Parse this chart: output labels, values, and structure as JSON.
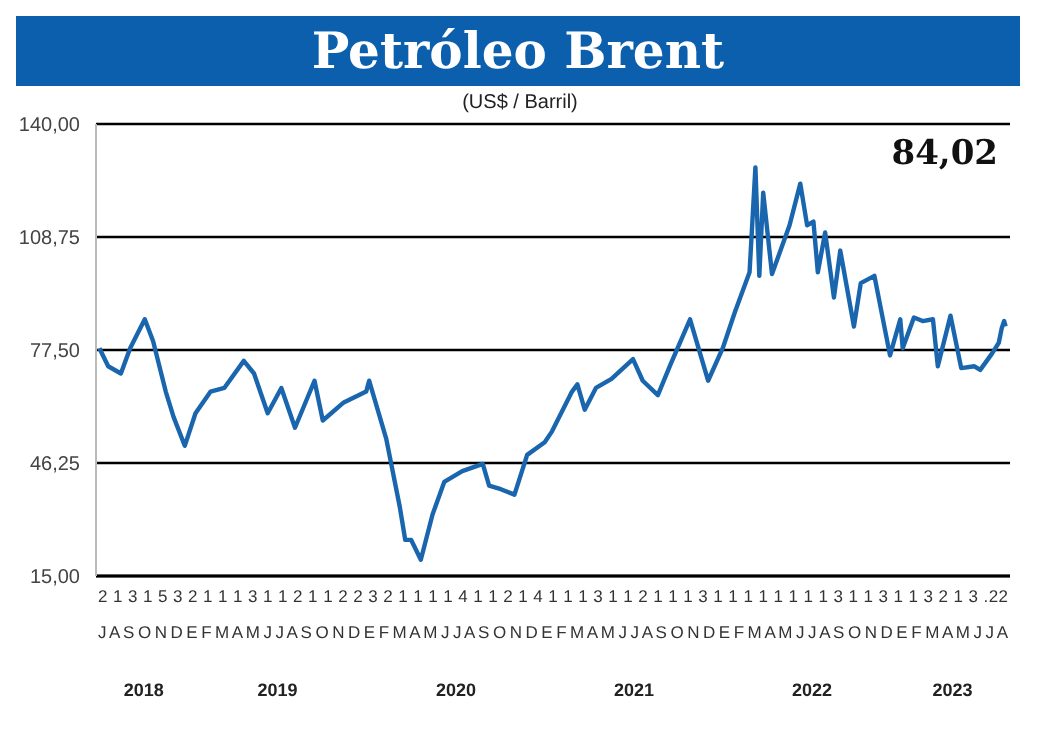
{
  "chart_data": {
    "type": "line",
    "title": "Petróleo Brent",
    "subtitle": "(US$ / Barril)",
    "x": [
      "2018-07-02",
      "2018-07-20",
      "2018-08-15",
      "2018-09-03",
      "2018-10-03",
      "2018-10-20",
      "2018-11-15",
      "2018-12-01",
      "2018-12-24",
      "2019-01-15",
      "2019-02-15",
      "2019-03-15",
      "2019-04-24",
      "2019-05-15",
      "2019-06-12",
      "2019-07-10",
      "2019-08-07",
      "2019-09-16",
      "2019-10-03",
      "2019-11-15",
      "2019-12-31",
      "2020-01-06",
      "2020-02-10",
      "2020-03-09",
      "2020-03-20",
      "2020-04-01",
      "2020-04-21",
      "2020-05-15",
      "2020-06-08",
      "2020-07-15",
      "2020-08-26",
      "2020-09-08",
      "2020-10-02",
      "2020-10-30",
      "2020-11-25",
      "2020-12-31",
      "2021-01-15",
      "2021-02-25",
      "2021-03-08",
      "2021-03-23",
      "2021-04-15",
      "2021-05-17",
      "2021-06-30",
      "2021-07-20",
      "2021-08-20",
      "2021-09-15",
      "2021-10-25",
      "2021-12-01",
      "2021-12-31",
      "2022-01-25",
      "2022-02-24",
      "2022-03-08",
      "2022-03-16",
      "2022-03-24",
      "2022-04-11",
      "2022-05-17",
      "2022-06-08",
      "2022-06-22",
      "2022-07-05",
      "2022-07-14",
      "2022-07-29",
      "2022-08-16",
      "2022-08-29",
      "2022-09-26",
      "2022-10-10",
      "2022-11-07",
      "2022-12-09",
      "2022-12-30",
      "2023-01-04",
      "2023-01-27",
      "2023-02-14",
      "2023-03-07",
      "2023-03-17",
      "2023-04-12",
      "2023-05-04",
      "2023-05-31",
      "2023-06-12",
      "2023-07-06",
      "2023-07-20",
      "2023-07-26",
      "2023-07-31",
      "2023-08-03"
    ],
    "series": [
      {
        "color": "#1a66ae",
        "values": [
          78,
          73,
          71,
          78,
          86,
          80,
          66,
          59,
          51,
          60,
          66,
          67,
          74.5,
          71,
          60,
          67,
          56,
          69,
          58,
          63,
          66,
          69,
          53,
          34,
          25,
          25,
          19.5,
          32,
          41,
          44,
          46,
          40,
          39,
          37.5,
          48.5,
          52,
          55,
          66,
          68,
          61,
          67,
          69.5,
          75,
          69,
          65,
          73.5,
          86,
          69,
          78,
          88,
          99,
          128,
          98,
          121,
          98.5,
          112,
          123.5,
          112,
          113,
          99,
          110,
          92,
          105,
          84,
          96,
          98,
          76,
          86,
          78,
          86.5,
          85.5,
          86,
          73,
          87,
          72.5,
          73,
          72,
          76.5,
          79.5,
          83.5,
          85.5,
          84.02
        ]
      }
    ],
    "xlim": [
      "2018-06-25",
      "2023-08-12"
    ],
    "xticks": [
      {
        "value": "2018-10-01",
        "label": "2018"
      },
      {
        "value": "2019-07-02",
        "label": "2019"
      },
      {
        "value": "2020-07-02",
        "label": "2020"
      },
      {
        "value": "2021-07-02",
        "label": "2021"
      },
      {
        "value": "2022-07-02",
        "label": "2022"
      },
      {
        "value": "2023-04-16",
        "label": "2023"
      }
    ],
    "ylim": [
      15,
      140
    ],
    "yticks": [
      {
        "value": 15,
        "label": "15,00"
      },
      {
        "value": 46.25,
        "label": "46,25"
      },
      {
        "value": 77.5,
        "label": "77,50"
      },
      {
        "value": 108.75,
        "label": "108,75"
      },
      {
        "value": 140,
        "label": "140,00"
      }
    ],
    "grid": "y",
    "legend": false,
    "marker": "none",
    "line_style": "solid",
    "annotations": [
      "84,02",
      "2 1 3 1 5 3 2 1 1 1 3 1 1 2 1 1 2 2 3 2 1 1 1 1 4 1 1 2 1 4 1 1 1 3 1 1 2 1 1 1 3 1 1 1 1 1 1 1 1 3 1 1 3 1 1 3 2 1 3 .22",
      "J A S O N D E F M A M J J A S O N D E F M A M J J A S O N D E F M A M J J A S O N D E F M A M J J A S O N D E F M A M J J A"
    ]
  }
}
